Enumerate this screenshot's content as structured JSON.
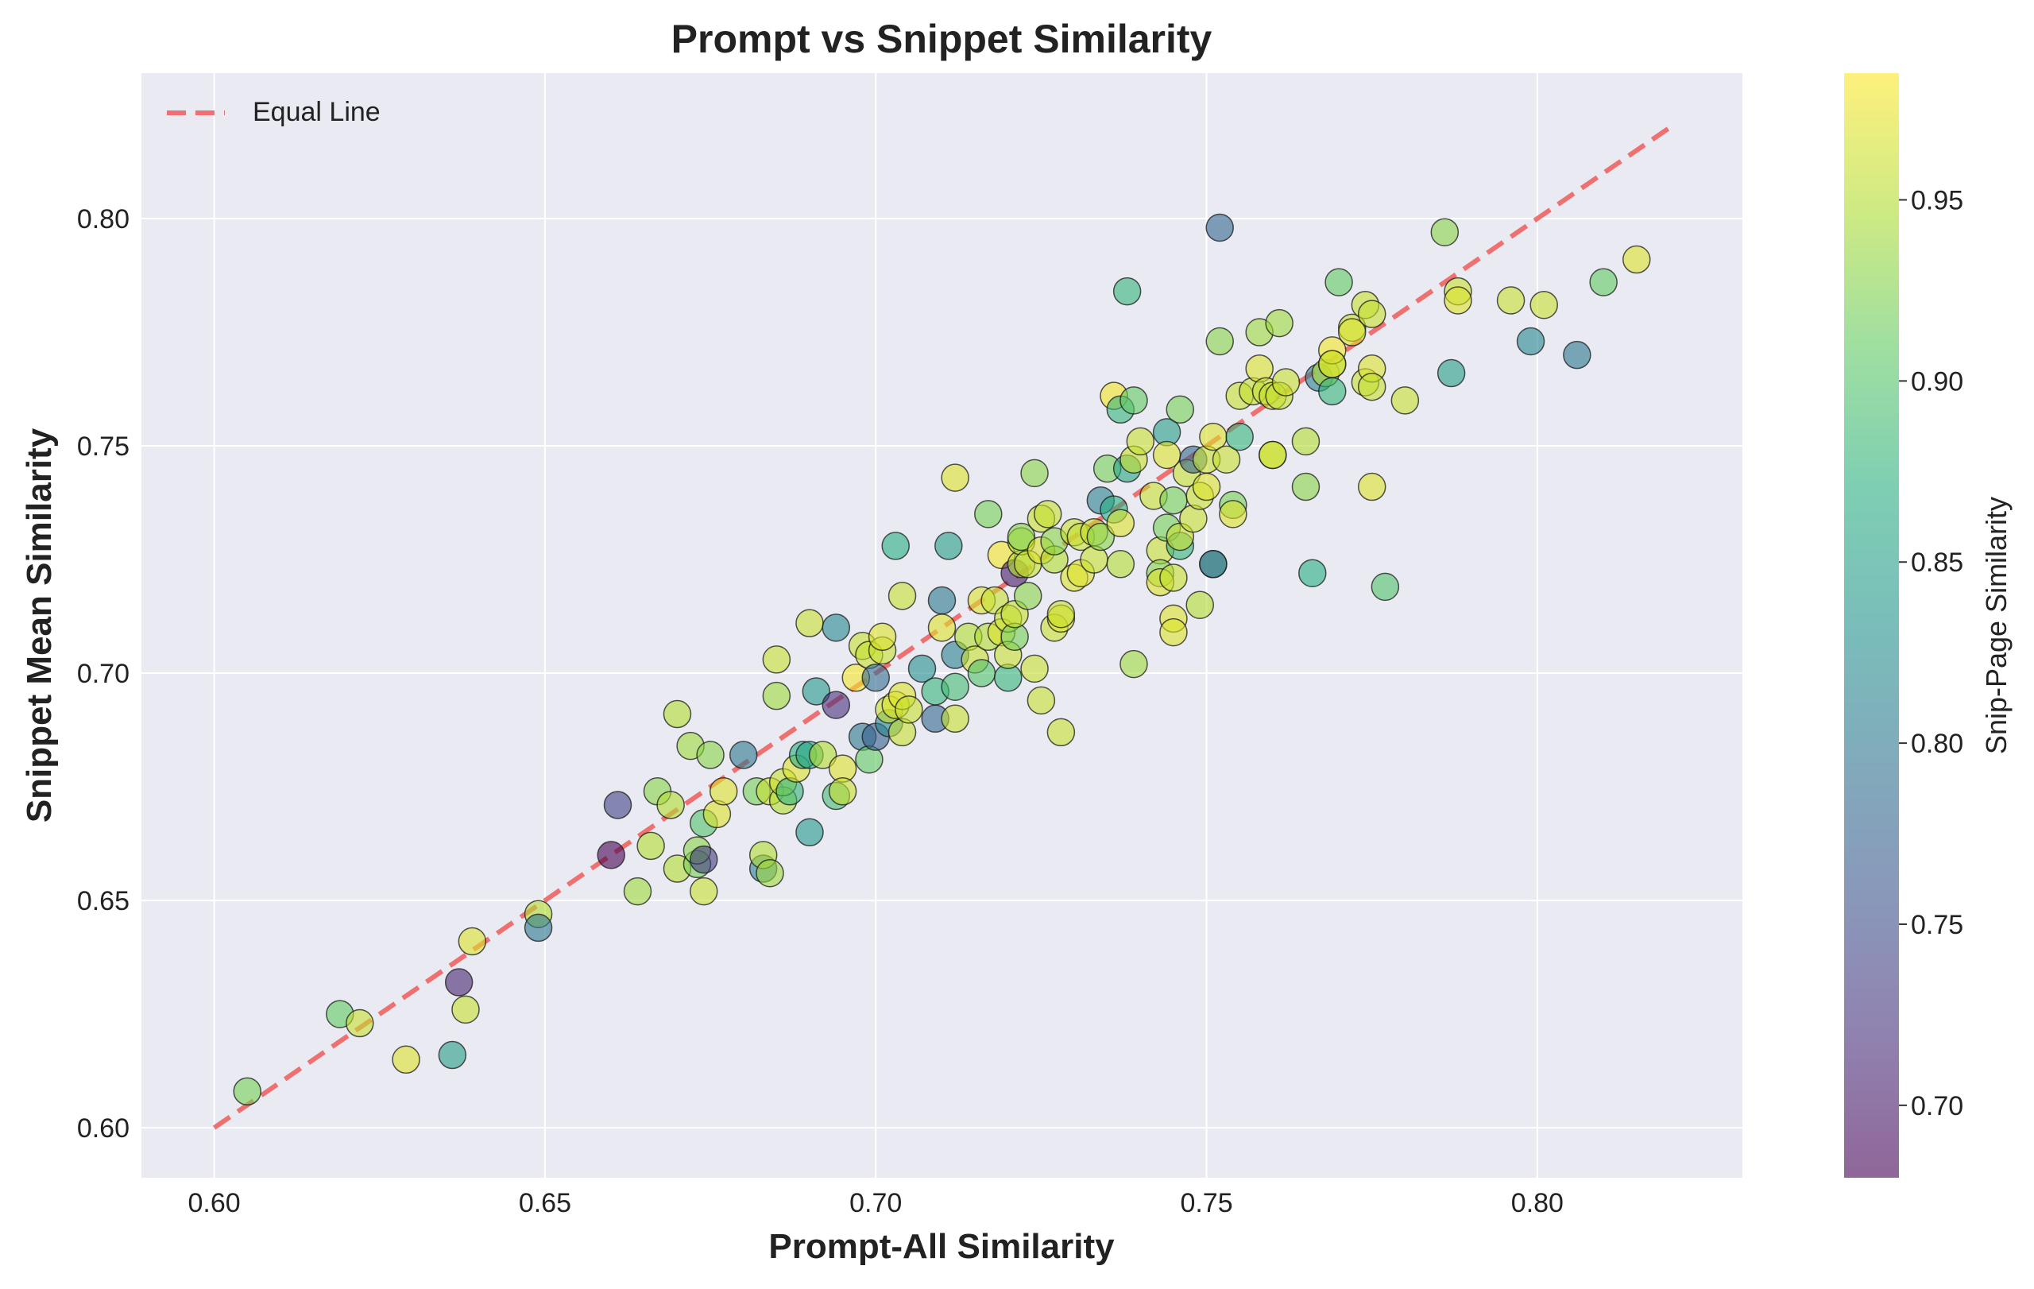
{
  "chart_data": {
    "type": "scatter",
    "title": "Prompt vs Snippet Similarity",
    "xlabel": "Prompt-All Similarity",
    "ylabel": "Snippet Mean Similarity",
    "xlim": [
      0.589,
      0.831
    ],
    "ylim": [
      0.589,
      0.832
    ],
    "xticks": [
      0.6,
      0.65,
      0.7,
      0.75,
      0.8
    ],
    "xtick_labels": [
      "0.60",
      "0.65",
      "0.70",
      "0.75",
      "0.80"
    ],
    "yticks": [
      0.6,
      0.65,
      0.7,
      0.75,
      0.8
    ],
    "ytick_labels": [
      "0.60",
      "0.65",
      "0.70",
      "0.75",
      "0.80"
    ],
    "grid": true,
    "legend": {
      "position": "top-left",
      "entries": [
        "Equal Line"
      ]
    },
    "equal_line": {
      "name": "Equal Line",
      "x": [
        0.6,
        0.82
      ],
      "y": [
        0.6,
        0.82
      ],
      "color": "#ef5b5b",
      "style": "dashed"
    },
    "colorbar": {
      "label": "Snip-Page Similarity",
      "range": [
        0.68,
        0.985
      ],
      "ticks": [
        0.7,
        0.75,
        0.8,
        0.85,
        0.9,
        0.95
      ],
      "tick_labels": [
        "0.70",
        "0.75",
        "0.80",
        "0.85",
        "0.90",
        "0.95"
      ],
      "colormap": "viridis"
    },
    "points": [
      [
        0.605,
        0.608,
        0.92
      ],
      [
        0.619,
        0.625,
        0.91
      ],
      [
        0.622,
        0.623,
        0.96
      ],
      [
        0.629,
        0.615,
        0.97
      ],
      [
        0.636,
        0.616,
        0.85
      ],
      [
        0.637,
        0.632,
        0.71
      ],
      [
        0.638,
        0.626,
        0.96
      ],
      [
        0.639,
        0.641,
        0.97
      ],
      [
        0.649,
        0.647,
        0.95
      ],
      [
        0.649,
        0.644,
        0.8
      ],
      [
        0.66,
        0.66,
        0.68
      ],
      [
        0.661,
        0.671,
        0.74
      ],
      [
        0.664,
        0.652,
        0.94
      ],
      [
        0.666,
        0.662,
        0.95
      ],
      [
        0.667,
        0.674,
        0.93
      ],
      [
        0.669,
        0.671,
        0.95
      ],
      [
        0.67,
        0.657,
        0.95
      ],
      [
        0.67,
        0.691,
        0.95
      ],
      [
        0.672,
        0.684,
        0.94
      ],
      [
        0.673,
        0.658,
        0.92
      ],
      [
        0.673,
        0.661,
        0.93
      ],
      [
        0.674,
        0.652,
        0.96
      ],
      [
        0.674,
        0.659,
        0.73
      ],
      [
        0.674,
        0.667,
        0.9
      ],
      [
        0.675,
        0.682,
        0.93
      ],
      [
        0.676,
        0.669,
        0.97
      ],
      [
        0.677,
        0.674,
        0.97
      ],
      [
        0.68,
        0.682,
        0.8
      ],
      [
        0.682,
        0.674,
        0.92
      ],
      [
        0.683,
        0.657,
        0.81
      ],
      [
        0.683,
        0.66,
        0.95
      ],
      [
        0.684,
        0.656,
        0.94
      ],
      [
        0.684,
        0.674,
        0.96
      ],
      [
        0.685,
        0.695,
        0.94
      ],
      [
        0.685,
        0.703,
        0.96
      ],
      [
        0.686,
        0.672,
        0.95
      ],
      [
        0.686,
        0.676,
        0.96
      ],
      [
        0.687,
        0.674,
        0.88
      ],
      [
        0.688,
        0.679,
        0.97
      ],
      [
        0.689,
        0.682,
        0.87
      ],
      [
        0.69,
        0.682,
        0.86
      ],
      [
        0.69,
        0.711,
        0.96
      ],
      [
        0.69,
        0.665,
        0.84
      ],
      [
        0.691,
        0.696,
        0.84
      ],
      [
        0.692,
        0.682,
        0.95
      ],
      [
        0.694,
        0.693,
        0.72
      ],
      [
        0.694,
        0.71,
        0.82
      ],
      [
        0.694,
        0.673,
        0.89
      ],
      [
        0.695,
        0.679,
        0.97
      ],
      [
        0.695,
        0.674,
        0.96
      ],
      [
        0.697,
        0.699,
        0.98
      ],
      [
        0.698,
        0.686,
        0.8
      ],
      [
        0.698,
        0.706,
        0.96
      ],
      [
        0.699,
        0.681,
        0.91
      ],
      [
        0.699,
        0.704,
        0.96
      ],
      [
        0.7,
        0.699,
        0.79
      ],
      [
        0.7,
        0.686,
        0.77
      ],
      [
        0.701,
        0.705,
        0.96
      ],
      [
        0.701,
        0.708,
        0.97
      ],
      [
        0.702,
        0.689,
        0.82
      ],
      [
        0.702,
        0.692,
        0.96
      ],
      [
        0.703,
        0.693,
        0.97
      ],
      [
        0.703,
        0.728,
        0.87
      ],
      [
        0.704,
        0.687,
        0.96
      ],
      [
        0.704,
        0.695,
        0.97
      ],
      [
        0.704,
        0.717,
        0.96
      ],
      [
        0.705,
        0.692,
        0.96
      ],
      [
        0.707,
        0.701,
        0.83
      ],
      [
        0.709,
        0.69,
        0.78
      ],
      [
        0.709,
        0.696,
        0.88
      ],
      [
        0.71,
        0.716,
        0.8
      ],
      [
        0.71,
        0.71,
        0.97
      ],
      [
        0.711,
        0.728,
        0.85
      ],
      [
        0.712,
        0.697,
        0.89
      ],
      [
        0.712,
        0.704,
        0.81
      ],
      [
        0.712,
        0.69,
        0.96
      ],
      [
        0.712,
        0.743,
        0.97
      ],
      [
        0.714,
        0.708,
        0.95
      ],
      [
        0.715,
        0.703,
        0.96
      ],
      [
        0.716,
        0.716,
        0.97
      ],
      [
        0.716,
        0.7,
        0.9
      ],
      [
        0.717,
        0.735,
        0.92
      ],
      [
        0.717,
        0.708,
        0.95
      ],
      [
        0.718,
        0.716,
        0.96
      ],
      [
        0.719,
        0.709,
        0.97
      ],
      [
        0.719,
        0.726,
        0.98
      ],
      [
        0.72,
        0.699,
        0.88
      ],
      [
        0.72,
        0.712,
        0.96
      ],
      [
        0.72,
        0.704,
        0.96
      ],
      [
        0.721,
        0.708,
        0.92
      ],
      [
        0.721,
        0.713,
        0.96
      ],
      [
        0.721,
        0.722,
        0.7
      ],
      [
        0.722,
        0.724,
        0.95
      ],
      [
        0.722,
        0.729,
        0.95
      ],
      [
        0.722,
        0.73,
        0.93
      ],
      [
        0.723,
        0.717,
        0.93
      ],
      [
        0.723,
        0.724,
        0.96
      ],
      [
        0.724,
        0.744,
        0.93
      ],
      [
        0.724,
        0.701,
        0.96
      ],
      [
        0.725,
        0.694,
        0.96
      ],
      [
        0.725,
        0.734,
        0.96
      ],
      [
        0.725,
        0.727,
        0.97
      ],
      [
        0.726,
        0.735,
        0.96
      ],
      [
        0.727,
        0.725,
        0.95
      ],
      [
        0.727,
        0.729,
        0.93
      ],
      [
        0.727,
        0.71,
        0.96
      ],
      [
        0.728,
        0.712,
        0.97
      ],
      [
        0.728,
        0.713,
        0.96
      ],
      [
        0.728,
        0.687,
        0.96
      ],
      [
        0.73,
        0.721,
        0.97
      ],
      [
        0.73,
        0.731,
        0.96
      ],
      [
        0.731,
        0.73,
        0.96
      ],
      [
        0.731,
        0.722,
        0.97
      ],
      [
        0.733,
        0.725,
        0.96
      ],
      [
        0.733,
        0.731,
        0.96
      ],
      [
        0.734,
        0.738,
        0.81
      ],
      [
        0.734,
        0.73,
        0.93
      ],
      [
        0.735,
        0.745,
        0.92
      ],
      [
        0.736,
        0.736,
        0.87
      ],
      [
        0.736,
        0.761,
        0.98
      ],
      [
        0.737,
        0.758,
        0.88
      ],
      [
        0.737,
        0.724,
        0.95
      ],
      [
        0.737,
        0.733,
        0.97
      ],
      [
        0.738,
        0.784,
        0.88
      ],
      [
        0.738,
        0.745,
        0.86
      ],
      [
        0.739,
        0.747,
        0.96
      ],
      [
        0.739,
        0.76,
        0.91
      ],
      [
        0.739,
        0.702,
        0.94
      ],
      [
        0.74,
        0.751,
        0.96
      ],
      [
        0.742,
        0.739,
        0.96
      ],
      [
        0.743,
        0.727,
        0.96
      ],
      [
        0.743,
        0.722,
        0.93
      ],
      [
        0.743,
        0.72,
        0.97
      ],
      [
        0.744,
        0.732,
        0.92
      ],
      [
        0.744,
        0.753,
        0.85
      ],
      [
        0.744,
        0.748,
        0.97
      ],
      [
        0.745,
        0.721,
        0.96
      ],
      [
        0.745,
        0.738,
        0.92
      ],
      [
        0.745,
        0.712,
        0.97
      ],
      [
        0.745,
        0.709,
        0.97
      ],
      [
        0.746,
        0.728,
        0.88
      ],
      [
        0.746,
        0.73,
        0.96
      ],
      [
        0.746,
        0.758,
        0.92
      ],
      [
        0.747,
        0.744,
        0.96
      ],
      [
        0.748,
        0.734,
        0.96
      ],
      [
        0.748,
        0.747,
        0.78
      ],
      [
        0.749,
        0.715,
        0.95
      ],
      [
        0.749,
        0.739,
        0.96
      ],
      [
        0.75,
        0.741,
        0.97
      ],
      [
        0.75,
        0.747,
        0.96
      ],
      [
        0.751,
        0.752,
        0.97
      ],
      [
        0.751,
        0.724,
        0.89
      ],
      [
        0.751,
        0.724,
        0.78
      ],
      [
        0.752,
        0.773,
        0.93
      ],
      [
        0.752,
        0.798,
        0.78
      ],
      [
        0.753,
        0.747,
        0.96
      ],
      [
        0.754,
        0.737,
        0.92
      ],
      [
        0.754,
        0.735,
        0.97
      ],
      [
        0.755,
        0.761,
        0.96
      ],
      [
        0.755,
        0.752,
        0.88
      ],
      [
        0.757,
        0.762,
        0.96
      ],
      [
        0.758,
        0.775,
        0.94
      ],
      [
        0.758,
        0.767,
        0.97
      ],
      [
        0.759,
        0.762,
        0.96
      ],
      [
        0.76,
        0.748,
        0.97
      ],
      [
        0.76,
        0.761,
        0.96
      ],
      [
        0.76,
        0.748,
        0.96
      ],
      [
        0.761,
        0.761,
        0.96
      ],
      [
        0.761,
        0.777,
        0.94
      ],
      [
        0.762,
        0.764,
        0.96
      ],
      [
        0.765,
        0.741,
        0.93
      ],
      [
        0.765,
        0.751,
        0.95
      ],
      [
        0.766,
        0.722,
        0.87
      ],
      [
        0.767,
        0.765,
        0.81
      ],
      [
        0.768,
        0.766,
        0.95
      ],
      [
        0.769,
        0.762,
        0.88
      ],
      [
        0.769,
        0.768,
        0.97
      ],
      [
        0.769,
        0.771,
        0.98
      ],
      [
        0.769,
        0.768,
        0.96
      ],
      [
        0.77,
        0.786,
        0.91
      ],
      [
        0.772,
        0.776,
        0.96
      ],
      [
        0.772,
        0.775,
        0.97
      ],
      [
        0.774,
        0.781,
        0.96
      ],
      [
        0.774,
        0.764,
        0.96
      ],
      [
        0.775,
        0.767,
        0.97
      ],
      [
        0.775,
        0.741,
        0.97
      ],
      [
        0.775,
        0.779,
        0.96
      ],
      [
        0.775,
        0.763,
        0.96
      ],
      [
        0.777,
        0.719,
        0.9
      ],
      [
        0.78,
        0.76,
        0.96
      ],
      [
        0.786,
        0.797,
        0.93
      ],
      [
        0.787,
        0.766,
        0.85
      ],
      [
        0.788,
        0.784,
        0.96
      ],
      [
        0.788,
        0.782,
        0.97
      ],
      [
        0.796,
        0.782,
        0.96
      ],
      [
        0.799,
        0.773,
        0.82
      ],
      [
        0.801,
        0.781,
        0.96
      ],
      [
        0.806,
        0.77,
        0.8
      ],
      [
        0.81,
        0.786,
        0.91
      ],
      [
        0.815,
        0.791,
        0.97
      ]
    ]
  }
}
